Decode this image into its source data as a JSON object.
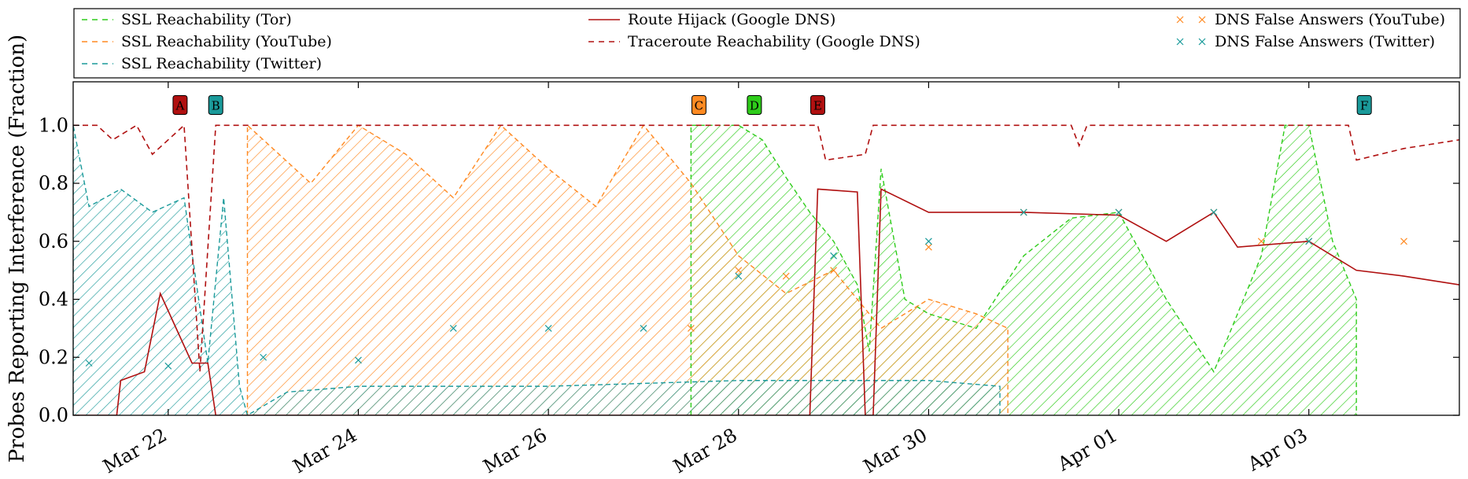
{
  "chart_data": {
    "type": "line",
    "title": "",
    "xlabel": "",
    "ylabel": "Probes Reporting Interference (Fraction)",
    "xlim": [
      "2014-03-21T00:00",
      "2014-04-04T14:00"
    ],
    "ylim": [
      0,
      1.15
    ],
    "yticks": [
      0.0,
      0.2,
      0.4,
      0.6,
      0.8,
      1.0
    ],
    "ytick_labels": [
      "0.0",
      "0.2",
      "0.4",
      "0.6",
      "0.8",
      "1.0"
    ],
    "xtick_labels": [
      "Mar 22",
      "Mar 24",
      "Mar 26",
      "Mar 28",
      "Mar 30",
      "Apr 01",
      "Apr 03"
    ],
    "xticks": [
      "2014-03-22",
      "2014-03-24",
      "2014-03-26",
      "2014-03-28",
      "2014-03-30",
      "2014-04-01",
      "2014-04-03"
    ],
    "grid": false,
    "legend_position": "top",
    "colors": {
      "tor": "#2ecc1a",
      "youtube": "#ff8a22",
      "twitter": "#1a9a9a",
      "google": "#b01010"
    },
    "series": [
      {
        "name": "SSL Reachability (Tor)",
        "style": "dashed-hatched",
        "color": "#2ecc1a",
        "points": [
          [
            "2014-03-27T12:00",
            0.0
          ],
          [
            "2014-03-27T12:00",
            1.0
          ],
          [
            "2014-03-28T00:00",
            1.0
          ],
          [
            "2014-03-28T06:00",
            0.95
          ],
          [
            "2014-03-28T12:00",
            0.82
          ],
          [
            "2014-03-28T18:00",
            0.7
          ],
          [
            "2014-03-29T00:00",
            0.6
          ],
          [
            "2014-03-29T06:00",
            0.45
          ],
          [
            "2014-03-29T09:00",
            0.22
          ],
          [
            "2014-03-29T12:00",
            0.85
          ],
          [
            "2014-03-29T18:00",
            0.4
          ],
          [
            "2014-03-30T00:00",
            0.35
          ],
          [
            "2014-03-30T12:00",
            0.3
          ],
          [
            "2014-03-31T00:00",
            0.55
          ],
          [
            "2014-03-31T12:00",
            0.68
          ],
          [
            "2014-04-01T00:00",
            0.7
          ],
          [
            "2014-04-01T12:00",
            0.4
          ],
          [
            "2014-04-02T00:00",
            0.15
          ],
          [
            "2014-04-02T12:00",
            0.55
          ],
          [
            "2014-04-02T18:00",
            1.0
          ],
          [
            "2014-04-03T00:00",
            1.0
          ],
          [
            "2014-04-03T06:00",
            0.6
          ],
          [
            "2014-04-03T12:00",
            0.4
          ],
          [
            "2014-04-03T12:00",
            0.0
          ]
        ]
      },
      {
        "name": "SSL Reachability (YouTube)",
        "style": "dashed-hatched",
        "color": "#ff8a22",
        "points": [
          [
            "2014-03-22T20:00",
            0.0
          ],
          [
            "2014-03-22T20:00",
            1.0
          ],
          [
            "2014-03-23T12:00",
            0.8
          ],
          [
            "2014-03-24T00:00",
            1.0
          ],
          [
            "2014-03-24T12:00",
            0.9
          ],
          [
            "2014-03-25T00:00",
            0.75
          ],
          [
            "2014-03-25T12:00",
            1.0
          ],
          [
            "2014-03-26T00:00",
            0.85
          ],
          [
            "2014-03-26T12:00",
            0.72
          ],
          [
            "2014-03-27T00:00",
            1.0
          ],
          [
            "2014-03-27T12:00",
            0.8
          ],
          [
            "2014-03-28T00:00",
            0.55
          ],
          [
            "2014-03-28T12:00",
            0.42
          ],
          [
            "2014-03-29T00:00",
            0.5
          ],
          [
            "2014-03-29T12:00",
            0.3
          ],
          [
            "2014-03-30T00:00",
            0.4
          ],
          [
            "2014-03-30T12:00",
            0.35
          ],
          [
            "2014-03-30T20:00",
            0.3
          ],
          [
            "2014-03-30T20:00",
            0.0
          ]
        ]
      },
      {
        "name": "SSL Reachability (Twitter)",
        "style": "dashed-hatched",
        "color": "#1a9a9a",
        "points": [
          [
            "2014-03-21T00:00",
            0.0
          ],
          [
            "2014-03-21T00:00",
            1.0
          ],
          [
            "2014-03-21T04:00",
            0.72
          ],
          [
            "2014-03-21T12:00",
            0.78
          ],
          [
            "2014-03-21T20:00",
            0.7
          ],
          [
            "2014-03-22T04:00",
            0.75
          ],
          [
            "2014-03-22T10:00",
            0.18
          ],
          [
            "2014-03-22T14:00",
            0.75
          ],
          [
            "2014-03-22T18:00",
            0.1
          ],
          [
            "2014-03-22T20:00",
            0.0
          ],
          [
            "2014-03-23T06:00",
            0.08
          ],
          [
            "2014-03-24T00:00",
            0.1
          ],
          [
            "2014-03-26T00:00",
            0.1
          ],
          [
            "2014-03-28T00:00",
            0.12
          ],
          [
            "2014-03-30T00:00",
            0.12
          ],
          [
            "2014-03-30T18:00",
            0.1
          ],
          [
            "2014-03-30T18:00",
            0.0
          ]
        ]
      },
      {
        "name": "Route Hijack (Google DNS)",
        "style": "solid",
        "color": "#b01010",
        "points": [
          [
            "2014-03-21T00:00",
            0.0
          ],
          [
            "2014-03-21T11:00",
            0.0
          ],
          [
            "2014-03-21T12:00",
            0.12
          ],
          [
            "2014-03-21T18:00",
            0.15
          ],
          [
            "2014-03-21T22:00",
            0.42
          ],
          [
            "2014-03-22T02:00",
            0.3
          ],
          [
            "2014-03-22T06:00",
            0.18
          ],
          [
            "2014-03-22T10:00",
            0.18
          ],
          [
            "2014-03-22T12:00",
            0.0
          ],
          [
            "2014-03-28T18:00",
            0.0
          ],
          [
            "2014-03-28T20:00",
            0.78
          ],
          [
            "2014-03-29T06:00",
            0.77
          ],
          [
            "2014-03-29T08:00",
            0.0
          ],
          [
            "2014-03-29T10:00",
            0.0
          ],
          [
            "2014-03-29T12:00",
            0.78
          ],
          [
            "2014-03-30T00:00",
            0.7
          ],
          [
            "2014-03-31T00:00",
            0.7
          ],
          [
            "2014-04-01T00:00",
            0.69
          ],
          [
            "2014-04-01T12:00",
            0.6
          ],
          [
            "2014-04-02T00:00",
            0.7
          ],
          [
            "2014-04-02T06:00",
            0.58
          ],
          [
            "2014-04-03T00:00",
            0.6
          ],
          [
            "2014-04-03T12:00",
            0.5
          ],
          [
            "2014-04-04T00:00",
            0.48
          ],
          [
            "2014-04-04T14:00",
            0.45
          ]
        ]
      },
      {
        "name": "Traceroute Reachability (Google DNS)",
        "style": "dashed",
        "color": "#b01010",
        "points": [
          [
            "2014-03-21T00:00",
            1.0
          ],
          [
            "2014-03-21T06:00",
            1.0
          ],
          [
            "2014-03-21T10:00",
            0.95
          ],
          [
            "2014-03-21T16:00",
            1.0
          ],
          [
            "2014-03-21T20:00",
            0.9
          ],
          [
            "2014-03-22T04:00",
            1.0
          ],
          [
            "2014-03-22T08:00",
            0.15
          ],
          [
            "2014-03-22T12:00",
            1.0
          ],
          [
            "2014-03-28T20:00",
            1.0
          ],
          [
            "2014-03-28T22:00",
            0.88
          ],
          [
            "2014-03-29T08:00",
            0.9
          ],
          [
            "2014-03-29T10:00",
            1.0
          ],
          [
            "2014-03-31T12:00",
            1.0
          ],
          [
            "2014-03-31T14:00",
            0.93
          ],
          [
            "2014-03-31T16:00",
            1.0
          ],
          [
            "2014-04-03T10:00",
            1.0
          ],
          [
            "2014-04-03T12:00",
            0.88
          ],
          [
            "2014-04-04T00:00",
            0.92
          ],
          [
            "2014-04-04T14:00",
            0.95
          ]
        ]
      },
      {
        "name": "DNS False Answers (YouTube)",
        "style": "marker-x",
        "color": "#ff8a22",
        "points": [
          [
            "2014-03-27T12:00",
            0.3
          ],
          [
            "2014-03-28T00:00",
            0.5
          ],
          [
            "2014-03-28T12:00",
            0.48
          ],
          [
            "2014-03-29T00:00",
            0.5
          ],
          [
            "2014-03-30T00:00",
            0.58
          ],
          [
            "2014-03-31T00:00",
            0.7
          ],
          [
            "2014-04-01T00:00",
            0.7
          ],
          [
            "2014-04-02T00:00",
            0.7
          ],
          [
            "2014-04-02T12:00",
            0.6
          ],
          [
            "2014-04-03T00:00",
            0.6
          ],
          [
            "2014-04-04T00:00",
            0.6
          ]
        ]
      },
      {
        "name": "DNS False Answers (Twitter)",
        "style": "marker-x",
        "color": "#1a9a9a",
        "points": [
          [
            "2014-03-21T04:00",
            0.18
          ],
          [
            "2014-03-22T00:00",
            0.17
          ],
          [
            "2014-03-23T00:00",
            0.2
          ],
          [
            "2014-03-24T00:00",
            0.19
          ],
          [
            "2014-03-25T00:00",
            0.3
          ],
          [
            "2014-03-26T00:00",
            0.3
          ],
          [
            "2014-03-27T00:00",
            0.3
          ],
          [
            "2014-03-28T00:00",
            0.48
          ],
          [
            "2014-03-29T00:00",
            0.55
          ],
          [
            "2014-03-30T00:00",
            0.6
          ],
          [
            "2014-03-31T00:00",
            0.7
          ],
          [
            "2014-04-01T00:00",
            0.7
          ],
          [
            "2014-04-02T00:00",
            0.7
          ],
          [
            "2014-04-03T00:00",
            0.6
          ]
        ]
      }
    ],
    "annotations": [
      {
        "label": "A",
        "x": "2014-03-22T03:00",
        "y": 1.07,
        "color": "#b01010"
      },
      {
        "label": "B",
        "x": "2014-03-22T12:00",
        "y": 1.07,
        "color": "#1a9a9a"
      },
      {
        "label": "C",
        "x": "2014-03-27T14:00",
        "y": 1.07,
        "color": "#ff8a22"
      },
      {
        "label": "D",
        "x": "2014-03-28T04:00",
        "y": 1.07,
        "color": "#2ecc1a"
      },
      {
        "label": "E",
        "x": "2014-03-28T20:00",
        "y": 1.07,
        "color": "#b01010"
      },
      {
        "label": "F",
        "x": "2014-04-03T14:00",
        "y": 1.07,
        "color": "#1a9a9a"
      }
    ]
  }
}
